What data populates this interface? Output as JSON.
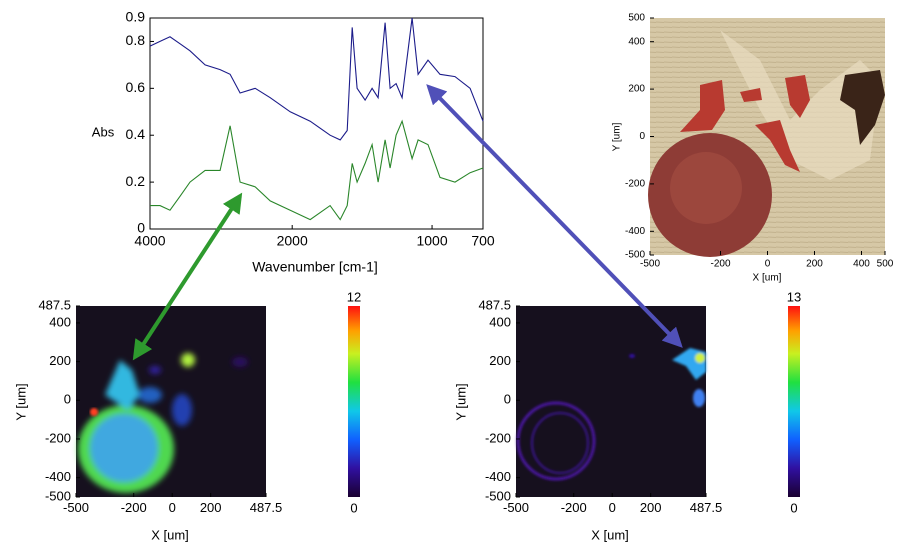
{
  "chart_data": [
    {
      "type": "line",
      "xlabel": "Wavenumber [cm-1]",
      "ylabel": "Abs",
      "x": [
        4000,
        3859,
        3718,
        3577,
        3437,
        3225,
        3014,
        2873,
        2732,
        2521,
        2310,
        2028,
        1871,
        1729,
        1657,
        1607,
        1571,
        1536,
        1479,
        1429,
        1386,
        1336,
        1300,
        1257,
        1214,
        1143,
        1100,
        1029,
        953,
        865,
        776,
        700
      ],
      "series": [
        {
          "color": "#1c1c8a",
          "values": [
            0.78,
            0.8,
            0.82,
            0.79,
            0.76,
            0.7,
            0.68,
            0.66,
            0.58,
            0.6,
            0.56,
            0.5,
            0.46,
            0.4,
            0.38,
            0.42,
            0.86,
            0.6,
            0.55,
            0.6,
            0.56,
            0.88,
            0.6,
            0.62,
            0.56,
            0.9,
            0.66,
            0.72,
            0.66,
            0.65,
            0.6,
            0.46
          ]
        },
        {
          "color": "#2a862a",
          "values": [
            0.1,
            0.1,
            0.08,
            0.14,
            0.2,
            0.25,
            0.25,
            0.44,
            0.2,
            0.18,
            0.12,
            0.08,
            0.04,
            0.1,
            0.04,
            0.1,
            0.28,
            0.2,
            0.28,
            0.36,
            0.2,
            0.38,
            0.26,
            0.4,
            0.46,
            0.3,
            0.38,
            0.36,
            0.22,
            0.2,
            0.24,
            0.26
          ]
        }
      ],
      "xlim": [
        4000,
        700
      ],
      "xticks": [
        4000,
        2000,
        1000,
        700
      ],
      "ylim": [
        0,
        0.9
      ],
      "yticks": [
        0,
        0.2,
        0.4,
        0.6,
        0.8,
        0.9
      ]
    },
    {
      "type": "image",
      "xlabel": "X [um]",
      "ylabel": "Y [um]",
      "xlim": [
        -500,
        500
      ],
      "xticks": [
        -500,
        -200,
        0,
        200,
        400,
        500
      ],
      "ylim": [
        -500,
        500
      ],
      "yticks": [
        500,
        400,
        200,
        0,
        -200,
        -400,
        -500
      ]
    },
    {
      "type": "heatmap",
      "xlabel": "X [um]",
      "ylabel": "Y [um]",
      "xlim": [
        -500,
        487.5
      ],
      "xticks": [
        -500,
        -200,
        0,
        200,
        487.5
      ],
      "ylim": [
        -500,
        487.5
      ],
      "yticks": [
        487.5,
        400,
        200,
        0,
        -200,
        -400,
        -500
      ],
      "clim": [
        0,
        12
      ],
      "cticks": [
        0,
        12
      ]
    },
    {
      "type": "heatmap",
      "xlabel": "X [um]",
      "ylabel": "Y [um]",
      "xlim": [
        -500,
        487.5
      ],
      "xticks": [
        -500,
        -200,
        0,
        200,
        487.5
      ],
      "ylim": [
        -500,
        487.5
      ],
      "yticks": [
        487.5,
        400,
        200,
        0,
        -200,
        -400,
        -500
      ],
      "clim": [
        0,
        13
      ],
      "cticks": [
        0,
        13
      ]
    }
  ]
}
